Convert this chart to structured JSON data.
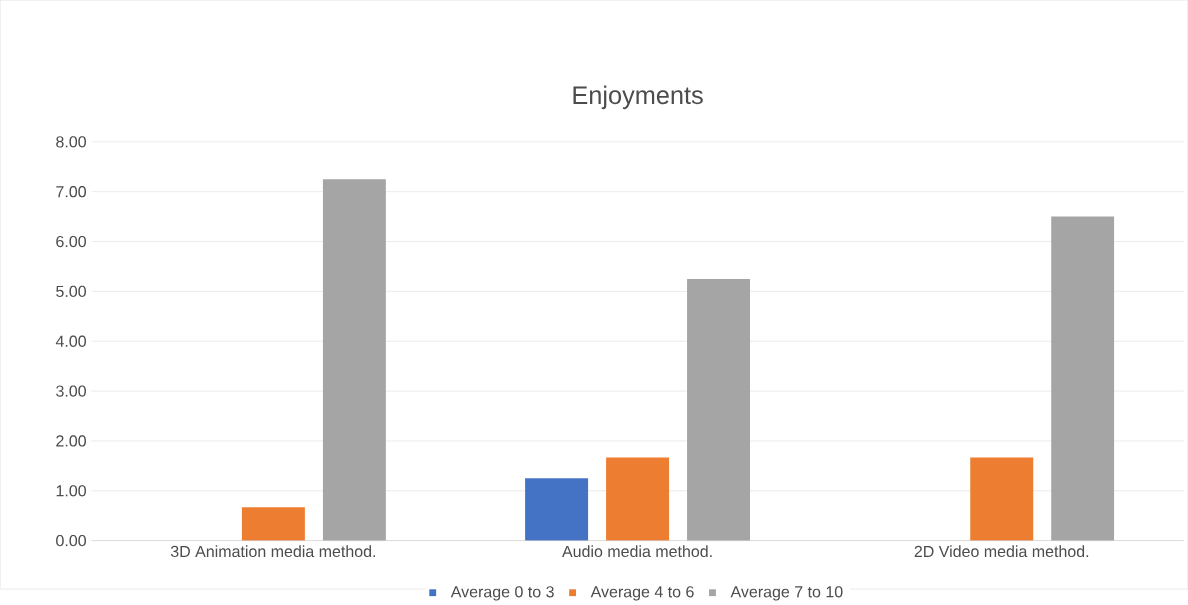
{
  "chart_data": {
    "type": "bar",
    "title": "Enjoyments",
    "categories": [
      "3D Animation media method.",
      "Audio media method.",
      "2D Video media method."
    ],
    "series": [
      {
        "name": "Average 0 to 3",
        "color": "#4472c4",
        "values": [
          0,
          1.25,
          0
        ]
      },
      {
        "name": "Average 4 to 6",
        "color": "#ed7d31",
        "values": [
          0.67,
          1.67,
          1.67
        ]
      },
      {
        "name": "Average 7 to 10",
        "color": "#a5a5a5",
        "values": [
          7.25,
          5.25,
          6.5
        ]
      }
    ],
    "ylim": [
      0,
      8
    ],
    "yticks": [
      {
        "value": 0,
        "label": "0.00"
      },
      {
        "value": 1,
        "label": "1.00"
      },
      {
        "value": 2,
        "label": "2.00"
      },
      {
        "value": 3,
        "label": "3.00"
      },
      {
        "value": 4,
        "label": "4.00"
      },
      {
        "value": 5,
        "label": "5.00"
      },
      {
        "value": 6,
        "label": "6.00"
      },
      {
        "value": 7,
        "label": "7.00"
      },
      {
        "value": 8,
        "label": "8.00"
      }
    ],
    "grid": "y",
    "legend": "bottom"
  }
}
